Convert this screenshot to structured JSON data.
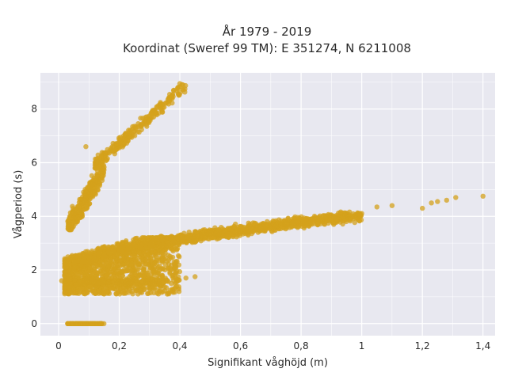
{
  "chart_data": {
    "type": "scatter",
    "title": "År 1979 - 2019",
    "subtitle": "Koordinat (Sweref 99 TM): E 351274, N 6211008",
    "xlabel": "Signifikant våghöjd (m)",
    "ylabel": "Vågperiod (s)",
    "xlim": [
      -0.06,
      1.44
    ],
    "ylim": [
      -0.45,
      9.35
    ],
    "x_ticks": [
      0,
      0.2,
      0.4,
      0.6,
      0.8,
      1,
      1.2,
      1.4
    ],
    "x_tick_labels": [
      "0",
      "0,2",
      "0,4",
      "0,6",
      "0,8",
      "1",
      "1,2",
      "1,4"
    ],
    "y_ticks": [
      0,
      2,
      4,
      6,
      8
    ],
    "y_tick_labels": [
      "0",
      "2",
      "4",
      "6",
      "8"
    ],
    "grid": true,
    "marker_color": "#d4a21c",
    "background_color": "#e8e8f0",
    "clusters": [
      {
        "x": [
          0.03,
          0.15
        ],
        "y": [
          0,
          0
        ]
      },
      {
        "x": [
          0.02,
          0.4
        ],
        "y": [
          1.1,
          3.2
        ]
      },
      {
        "x": [
          0.05,
          0.6
        ],
        "y": [
          1.4,
          3.8
        ]
      },
      {
        "x": [
          0.3,
          0.9
        ],
        "y": [
          2.5,
          4.0
        ]
      },
      {
        "x": [
          0.03,
          0.15
        ],
        "y": [
          3.5,
          6.0
        ]
      },
      {
        "x": [
          0.12,
          0.42
        ],
        "y": [
          5.8,
          9.0
        ]
      }
    ],
    "points": [
      {
        "x": 1.2,
        "y": 4.3
      },
      {
        "x": 1.23,
        "y": 4.5
      },
      {
        "x": 1.25,
        "y": 4.55
      },
      {
        "x": 1.28,
        "y": 4.6
      },
      {
        "x": 1.31,
        "y": 4.7
      },
      {
        "x": 1.4,
        "y": 4.75
      },
      {
        "x": 1.1,
        "y": 4.4
      },
      {
        "x": 1.05,
        "y": 4.35
      },
      {
        "x": 0.4,
        "y": 8.95
      },
      {
        "x": 0.38,
        "y": 8.7
      },
      {
        "x": 0.09,
        "y": 6.6
      },
      {
        "x": 0.01,
        "y": 1.6
      },
      {
        "x": 0.45,
        "y": 1.75
      },
      {
        "x": 0.42,
        "y": 1.7
      }
    ]
  }
}
